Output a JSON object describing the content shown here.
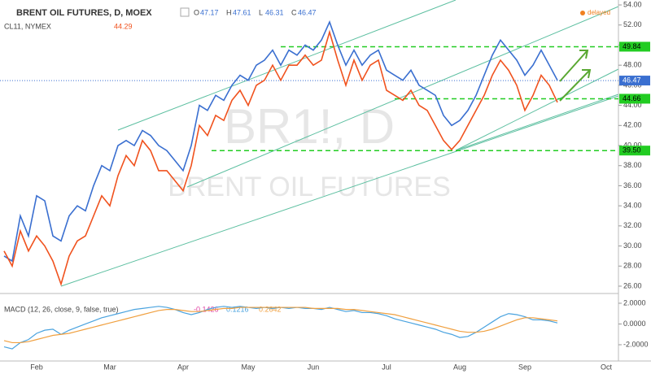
{
  "header": {
    "title": "BRENT OIL FUTURES, D, MOEX",
    "ohlc": [
      {
        "key": "O",
        "value": "47.17"
      },
      {
        "key": "H",
        "value": "47.61"
      },
      {
        "key": "L",
        "value": "46.31"
      },
      {
        "key": "C",
        "value": "46.47"
      }
    ],
    "compare": "CL11, NYMEX",
    "compare_value": "44.29",
    "status": "delayed",
    "watermark": "BR1!, D",
    "watermark_sub": "BRENT OIL FUTURES"
  },
  "chart_data": [
    {
      "type": "line",
      "categories": [
        null,
        null,
        null,
        null,
        "Feb",
        null,
        null,
        null,
        null,
        null,
        null,
        null,
        null,
        "Mar",
        null,
        null,
        null,
        null,
        null,
        null,
        null,
        null,
        "Apr",
        null,
        null,
        null,
        null,
        null,
        null,
        null,
        "May",
        null,
        null,
        null,
        null,
        null,
        null,
        null,
        "Jun",
        null,
        null,
        null,
        null,
        null,
        null,
        null,
        null,
        "Jul",
        null,
        null,
        null,
        null,
        null,
        null,
        null,
        null,
        "Aug",
        null,
        null,
        null,
        null,
        null,
        null,
        null,
        "Sep",
        null,
        null,
        null,
        null,
        null,
        null,
        null,
        null,
        null,
        "Oct",
        null
      ],
      "series": [
        {
          "name": "BR1!",
          "color": "#3a6fd0",
          "values": [
            29,
            28.5,
            33,
            31,
            35,
            34.5,
            31,
            30.5,
            33,
            34,
            33.5,
            36,
            38,
            37.5,
            40,
            40.5,
            40,
            41.5,
            41,
            40,
            39.5,
            38.5,
            37.5,
            40,
            44,
            43.5,
            45,
            44.5,
            46,
            47,
            46.5,
            48,
            48.5,
            49.5,
            48,
            49.5,
            49,
            50,
            49.5,
            50.5,
            52.3,
            50,
            48,
            49.5,
            48,
            49,
            49.5,
            47.5,
            47,
            46.5,
            47.5,
            46,
            45.5,
            45,
            43,
            42,
            42.5,
            43.5,
            45,
            47,
            49,
            50.5,
            49.5,
            48.5,
            47,
            48,
            49.5,
            48,
            46.5,
            null,
            null,
            null,
            null,
            null,
            null,
            null
          ]
        },
        {
          "name": "CL11",
          "color": "#f0521e",
          "values": [
            29.5,
            28,
            31.5,
            29.5,
            31,
            30,
            28.5,
            26.2,
            29,
            30.5,
            31,
            33,
            35,
            34,
            37,
            39,
            38,
            40.5,
            39.5,
            37.5,
            37.5,
            36.5,
            35.5,
            38,
            42,
            41,
            43,
            42.5,
            44.5,
            45.5,
            44,
            46,
            46.5,
            48,
            46.5,
            48,
            48,
            49,
            48,
            48.5,
            51.3,
            48.5,
            46,
            48.5,
            46.5,
            48,
            48.5,
            45.5,
            45,
            44.5,
            45.5,
            44,
            43.5,
            42,
            40.5,
            39.6,
            40.5,
            42,
            43.5,
            45,
            47,
            48.5,
            47.5,
            46,
            43.5,
            45,
            47,
            46,
            44.3,
            null,
            null,
            null,
            null,
            null,
            null,
            null
          ]
        }
      ],
      "ylim": [
        25.35,
        54.49
      ],
      "yticks": [
        {
          "value": 26,
          "label": "26.00"
        },
        {
          "value": 28,
          "label": "28.00"
        },
        {
          "value": 30,
          "label": "30.00"
        },
        {
          "value": 32,
          "label": "32.00"
        },
        {
          "value": 34,
          "label": "34.00"
        },
        {
          "value": 36,
          "label": "36.00"
        },
        {
          "value": 38,
          "label": "38.00"
        },
        {
          "value": 40,
          "label": "40.00"
        },
        {
          "value": 42,
          "label": "42.00"
        },
        {
          "value": 44,
          "label": "44.00"
        },
        {
          "value": 46,
          "label": "46.00"
        },
        {
          "value": 48,
          "label": "48.00"
        },
        {
          "value": 50,
          "label": "50.00"
        },
        {
          "value": 52,
          "label": "52.00"
        },
        {
          "value": 54,
          "label": "54.00"
        }
      ],
      "levels": [
        49.84,
        44.66,
        {
          "value": 39.5,
          "label": "39.50"
        }
      ],
      "level_color": "#22cc22",
      "last_price": 46.47
    },
    {
      "type": "line",
      "title": "MACD (12, 26, close, 9, false, true)",
      "value_labels": [
        "-0.1426",
        "0.1216",
        "0.2642"
      ],
      "series": [
        {
          "name": "MACD",
          "color": "#4aa3df",
          "values": [
            -2.2,
            -2.4,
            -1.8,
            -1.5,
            -0.9,
            -0.6,
            -0.5,
            -1.0,
            -0.6,
            -0.3,
            0.0,
            0.3,
            0.6,
            0.8,
            1.0,
            1.2,
            1.4,
            1.5,
            1.6,
            1.7,
            1.6,
            1.4,
            1.1,
            0.9,
            1.1,
            1.4,
            1.6,
            1.7,
            1.6,
            1.7,
            1.6,
            1.5,
            1.6,
            1.5,
            1.6,
            1.5,
            1.6,
            1.5,
            1.5,
            1.4,
            1.6,
            1.4,
            1.2,
            1.3,
            1.1,
            1.1,
            1.0,
            0.8,
            0.5,
            0.3,
            0.1,
            -0.1,
            -0.3,
            -0.5,
            -0.8,
            -1.0,
            -1.3,
            -1.2,
            -0.8,
            -0.3,
            0.2,
            0.7,
            1.0,
            0.9,
            0.7,
            0.4,
            0.4,
            0.3,
            0.1,
            null,
            null,
            null,
            null,
            null,
            null,
            null
          ]
        },
        {
          "name": "Signal",
          "color": "#f0a040",
          "values": [
            -1.6,
            -1.8,
            -1.8,
            -1.7,
            -1.5,
            -1.3,
            -1.1,
            -1.0,
            -0.9,
            -0.7,
            -0.5,
            -0.3,
            -0.1,
            0.1,
            0.3,
            0.5,
            0.7,
            0.9,
            1.1,
            1.3,
            1.4,
            1.4,
            1.3,
            1.2,
            1.2,
            1.3,
            1.4,
            1.5,
            1.5,
            1.6,
            1.6,
            1.6,
            1.6,
            1.6,
            1.6,
            1.6,
            1.6,
            1.6,
            1.5,
            1.5,
            1.5,
            1.5,
            1.4,
            1.4,
            1.3,
            1.2,
            1.1,
            1.0,
            0.9,
            0.7,
            0.5,
            0.3,
            0.1,
            -0.1,
            -0.3,
            -0.5,
            -0.7,
            -0.8,
            -0.8,
            -0.7,
            -0.5,
            -0.2,
            0.1,
            0.4,
            0.6,
            0.6,
            0.5,
            0.4,
            0.3,
            null,
            null,
            null,
            null,
            null,
            null,
            null
          ]
        }
      ],
      "ylim": [
        -3.41,
        2.86
      ],
      "yticks": [
        {
          "value": 2,
          "label": "2.0000"
        },
        {
          "value": 0,
          "label": "0.0000"
        },
        {
          "value": -2,
          "label": "-2.0000"
        }
      ]
    }
  ]
}
